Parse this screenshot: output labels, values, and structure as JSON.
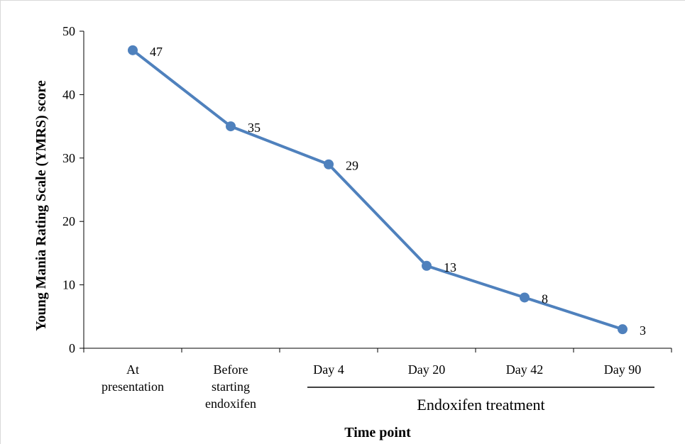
{
  "chart_data": {
    "type": "line",
    "title": "",
    "xlabel": "Time point",
    "ylabel": "Young Mania Rating Scale (YMRS) score",
    "categories": [
      [
        "At",
        "presentation"
      ],
      [
        "Before",
        "starting",
        "endoxifen"
      ],
      [
        "Day 4"
      ],
      [
        "Day 20"
      ],
      [
        "Day 42"
      ],
      [
        "Day 90"
      ]
    ],
    "series": [
      {
        "values": [
          47,
          35,
          29,
          13,
          8,
          3
        ],
        "color": "#4f81bd"
      }
    ],
    "data_labels": [
      "47",
      "35",
      "29",
      "13",
      "8",
      "3"
    ],
    "ylim": [
      0,
      50
    ],
    "yticks": [
      0,
      10,
      20,
      30,
      40,
      50
    ],
    "grid": false,
    "legend": "none",
    "annotation": {
      "text": "Endoxifen treatment",
      "spans_categories": [
        "Day 4",
        "Day 90"
      ]
    }
  }
}
